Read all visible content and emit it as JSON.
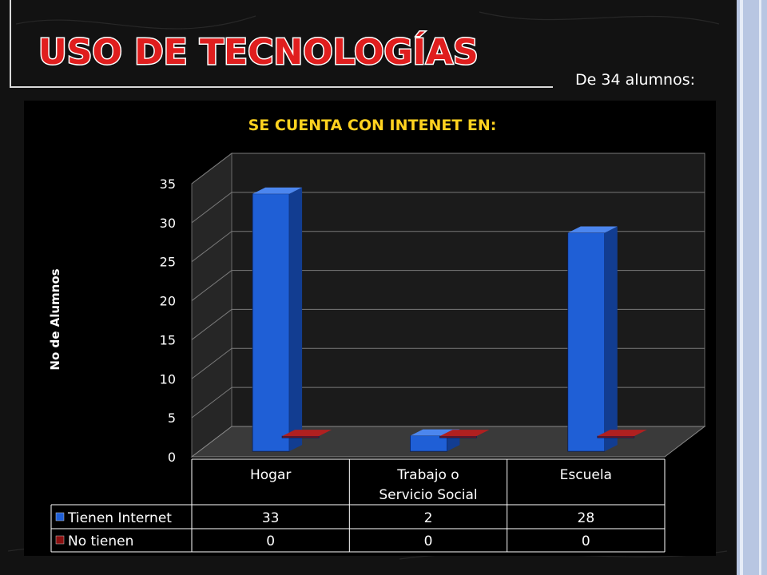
{
  "slide": {
    "title": "USO DE TECNOLOGÍAS",
    "subtitle": "De 34 alumnos:"
  },
  "colors": {
    "background": "#121212",
    "title_fill": "#e01e1e",
    "title_stroke": "#ffffff",
    "chart_title": "#ffd21f",
    "series_internet": "#1f5fd6",
    "series_no": "#8a0f0f",
    "accent_right": "#c9d4ea"
  },
  "chart_data": {
    "type": "bar",
    "title": "SE CUENTA CON INTENET EN:",
    "ylabel": "No de Alumnos",
    "xlabel": "",
    "ylim": [
      0,
      35
    ],
    "yticks": [
      0,
      5,
      10,
      15,
      20,
      25,
      30,
      35
    ],
    "categories": [
      "Hogar",
      "Trabajo o\nServicio Social",
      "Escuela"
    ],
    "series": [
      {
        "name": "Tienen Internet",
        "values": [
          33,
          2,
          28
        ],
        "color": "#1f5fd6"
      },
      {
        "name": "No tienen",
        "values": [
          0,
          0,
          0
        ],
        "color": "#8a0f0f"
      }
    ],
    "legend": "data-table",
    "grid": true,
    "three_d": true
  }
}
